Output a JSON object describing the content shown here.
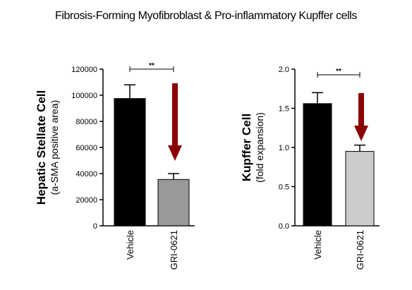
{
  "title": "Fibrosis-Forming Myofibroblast & Pro-inflammatory Kupffer cells",
  "colors": {
    "vehicle_bar": "#000000",
    "treated_bar_left": "#999999",
    "treated_bar_right": "#cccccc",
    "arrow": "#8b0000"
  },
  "chart_data": [
    {
      "type": "bar",
      "title": "",
      "ylabel": "Hepatic Stellate Cell",
      "ylabel_sub": "(a-SMA positive area)",
      "categories": [
        "Vehicle",
        "GRI-0621"
      ],
      "values": [
        97500,
        35500
      ],
      "errors": [
        10500,
        4500
      ],
      "ylim": [
        0,
        120000
      ],
      "yticks": [
        0,
        20000,
        40000,
        60000,
        80000,
        100000,
        120000
      ],
      "ytick_labels": [
        "0",
        "20000",
        "40000",
        "60000",
        "80000",
        "100000",
        "120000"
      ],
      "significance": "**",
      "arrow": "down",
      "grid": false
    },
    {
      "type": "bar",
      "title": "",
      "ylabel": "Kupffer Cell",
      "ylabel_sub": "(fold expansion)",
      "categories": [
        "Vehicle",
        "GRI-0621"
      ],
      "values": [
        1.56,
        0.95
      ],
      "errors": [
        0.14,
        0.08
      ],
      "ylim": [
        0,
        2.0
      ],
      "yticks": [
        0,
        0.5,
        1.0,
        1.5,
        2.0
      ],
      "ytick_labels": [
        "0.0",
        "0.5",
        "1.0",
        "1.5",
        "2.0"
      ],
      "significance": "**",
      "arrow": "down",
      "grid": false
    }
  ]
}
